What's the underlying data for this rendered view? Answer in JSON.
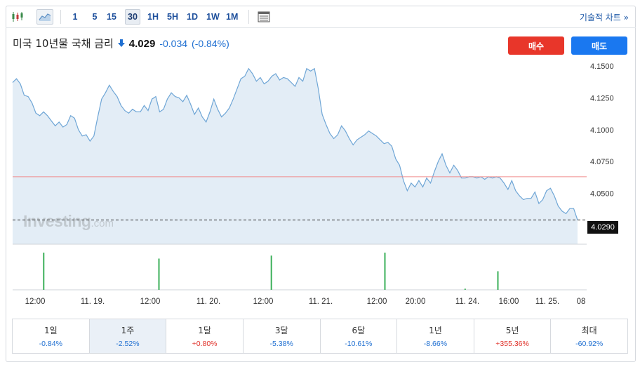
{
  "toolbar": {
    "candle_icon": "candlestick-icon",
    "area_icon": "area-chart-icon",
    "timeframes": [
      "1",
      "5",
      "15",
      "30",
      "1H",
      "5H",
      "1D",
      "1W",
      "1M"
    ],
    "active_timeframe": "30",
    "table_icon": "table-icon",
    "tech_chart_link": "기술적 차트 »"
  },
  "header": {
    "title": "미국 10년물 국채 금리",
    "direction": "down",
    "last": "4.029",
    "change": "-0.034",
    "change_pct": "(-0.84%)"
  },
  "buttons": {
    "sell": "매수",
    "buy": "매도"
  },
  "colors": {
    "line": "#6fa6d6",
    "fill": "#e3edf6",
    "ref_line": "#f08c8c",
    "volume": "#3cb05a",
    "sell": "#e8362a",
    "buy": "#1a78f0",
    "negative": "#1f6fd1",
    "positive": "#e0322a"
  },
  "watermark": {
    "brand": "Investing",
    "suffix": ".com"
  },
  "current_price_label": "4.0290",
  "chart_data": {
    "type": "area",
    "y_ticks": [
      "4.1500",
      "4.1250",
      "4.1000",
      "4.0750",
      "4.0500"
    ],
    "x_ticks": [
      "12:00",
      "11. 19.",
      "12:00",
      "11. 20.",
      "12:00",
      "11. 21.",
      "12:00",
      "20:00",
      "11. 24.",
      "16:00",
      "11. 25.",
      "08"
    ],
    "ylim": [
      4.01,
      4.155
    ],
    "reference_level": 4.063,
    "current": 4.029,
    "series": [
      {
        "values": [
          4.137,
          4.14,
          4.136,
          4.127,
          4.126,
          4.121,
          4.113,
          4.111,
          4.114,
          4.111,
          4.107,
          4.103,
          4.106,
          4.102,
          4.104,
          4.111,
          4.109,
          4.1,
          4.095,
          4.096,
          4.091,
          4.095,
          4.11,
          4.124,
          4.129,
          4.135,
          4.13,
          4.126,
          4.119,
          4.115,
          4.113,
          4.116,
          4.114,
          4.114,
          4.119,
          4.115,
          4.124,
          4.126,
          4.114,
          4.116,
          4.124,
          4.129,
          4.126,
          4.125,
          4.122,
          4.127,
          4.12,
          4.112,
          4.117,
          4.11,
          4.106,
          4.114,
          4.124,
          4.116,
          4.11,
          4.113,
          4.117,
          4.124,
          4.132,
          4.14,
          4.142,
          4.148,
          4.144,
          4.138,
          4.141,
          4.136,
          4.138,
          4.142,
          4.144,
          4.139,
          4.141,
          4.14,
          4.137,
          4.134,
          4.141,
          4.138,
          4.148,
          4.146,
          4.148,
          4.132,
          4.112,
          4.104,
          4.097,
          4.093,
          4.096,
          4.103,
          4.099,
          4.093,
          4.088,
          4.092,
          4.094,
          4.096,
          4.099,
          4.097,
          4.095,
          4.092,
          4.089,
          4.09,
          4.087,
          4.077,
          4.072,
          4.06,
          4.052,
          4.058,
          4.055,
          4.06,
          4.055,
          4.062,
          4.058,
          4.067,
          4.075,
          4.081,
          4.072,
          4.066,
          4.072,
          4.068,
          4.062,
          4.062,
          4.063,
          4.063,
          4.062,
          4.063,
          4.061,
          4.063,
          4.062,
          4.063,
          4.062,
          4.058,
          4.053,
          4.06,
          4.052,
          4.048,
          4.045,
          4.046,
          4.046,
          4.051,
          4.042,
          4.045,
          4.052,
          4.054,
          4.048,
          4.04,
          4.036,
          4.034,
          4.038,
          4.038,
          4.029
        ]
      }
    ],
    "volume": [
      {
        "x": 0.055,
        "h": 1.0
      },
      {
        "x": 0.259,
        "h": 0.84
      },
      {
        "x": 0.458,
        "h": 0.92
      },
      {
        "x": 0.659,
        "h": 1.0
      },
      {
        "x": 0.801,
        "h": 0.03
      },
      {
        "x": 0.859,
        "h": 0.5
      }
    ]
  },
  "periods": [
    {
      "label": "1일",
      "value": "-0.84%",
      "dir": "neg"
    },
    {
      "label": "1주",
      "value": "-2.52%",
      "dir": "neg",
      "active": true
    },
    {
      "label": "1달",
      "value": "+0.80%",
      "dir": "pos"
    },
    {
      "label": "3달",
      "value": "-5.38%",
      "dir": "neg"
    },
    {
      "label": "6달",
      "value": "-10.61%",
      "dir": "neg"
    },
    {
      "label": "1년",
      "value": "-8.66%",
      "dir": "neg"
    },
    {
      "label": "5년",
      "value": "+355.36%",
      "dir": "pos"
    },
    {
      "label": "최대",
      "value": "-60.92%",
      "dir": "neg"
    }
  ]
}
